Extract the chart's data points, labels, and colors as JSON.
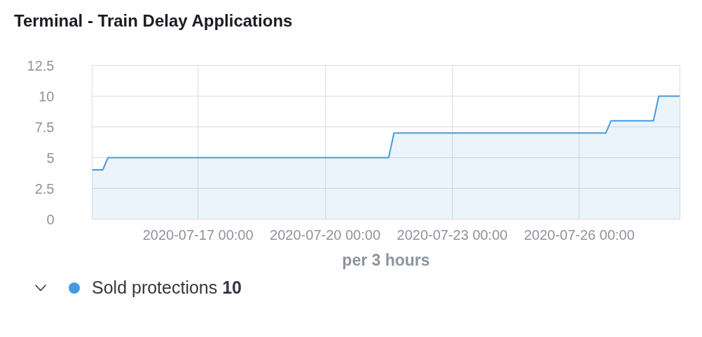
{
  "chart_data": {
    "type": "area",
    "title": "Terminal - Train Delay Applications",
    "xlabel": "per 3 hours",
    "x": [
      "2020-07-14T12:00",
      "2020-07-14T18:00",
      "2020-07-14T21:00",
      "2020-07-21T12:00",
      "2020-07-21T15:00",
      "2020-07-26T15:00",
      "2020-07-26T18:00",
      "2020-07-27T18:00",
      "2020-07-27T21:00",
      "2020-07-28T09:00"
    ],
    "series": [
      {
        "name": "Sold protections",
        "color": "#469ade",
        "values": [
          4,
          4,
          5,
          5,
          7,
          7,
          8,
          8,
          10,
          10
        ]
      }
    ],
    "xlim": [
      "2020-07-14T12:00",
      "2020-07-28T09:00"
    ],
    "xticks": [
      {
        "value": "2020-07-17",
        "label": "2020-07-17 00:00"
      },
      {
        "value": "2020-07-20",
        "label": "2020-07-20 00:00"
      },
      {
        "value": "2020-07-23",
        "label": "2020-07-23 00:00"
      },
      {
        "value": "2020-07-26",
        "label": "2020-07-26 00:00"
      }
    ],
    "ylim": [
      0,
      12.5
    ],
    "yticks": [
      0,
      2.5,
      5,
      7.5,
      10,
      12.5
    ],
    "annotations": [
      "10"
    ],
    "grid": true,
    "legend": "bottom left"
  }
}
